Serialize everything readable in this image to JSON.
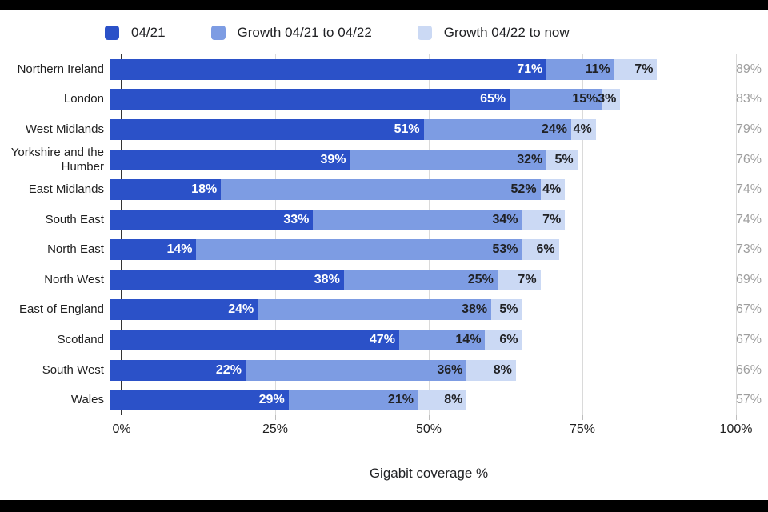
{
  "page": {
    "letterbox_color": "#000000",
    "canvas_background": "#ffffff"
  },
  "chart_data": {
    "type": "bar",
    "orientation": "horizontal",
    "stacked": true,
    "legend_position": "top",
    "grid": true,
    "xlabel": "Gigabit coverage %",
    "x_ticks": [
      "0%",
      "25%",
      "50%",
      "75%",
      "100%"
    ],
    "xlim": [
      0,
      100
    ],
    "categories": [
      "Northern Ireland",
      "London",
      "West Midlands",
      "Yorkshire and the Humber",
      "East Midlands",
      "South East",
      "North East",
      "North West",
      "East of England",
      "Scotland",
      "South West",
      "Wales"
    ],
    "series": [
      {
        "name": "04/21",
        "color": "#2b51c8",
        "values": [
          71,
          65,
          51,
          39,
          18,
          33,
          14,
          38,
          24,
          47,
          22,
          29
        ]
      },
      {
        "name": "Growth 04/21 to 04/22",
        "color": "#7d9ce3",
        "values": [
          11,
          15,
          24,
          32,
          52,
          34,
          53,
          25,
          38,
          14,
          36,
          21
        ]
      },
      {
        "name": "Growth 04/22 to now",
        "color": "#cbd9f4",
        "values": [
          7,
          3,
          4,
          5,
          4,
          7,
          6,
          7,
          5,
          6,
          8,
          8
        ]
      }
    ],
    "totals": [
      89,
      83,
      79,
      76,
      74,
      74,
      73,
      69,
      67,
      67,
      66,
      57
    ],
    "value_suffix": "%",
    "colors": {
      "label_on_dark_segment": "#ffffff",
      "label_on_light_segment": "#202124",
      "total_label": "#9e9e9e",
      "gridline": "#dadada",
      "axis_line": "#333333"
    }
  }
}
